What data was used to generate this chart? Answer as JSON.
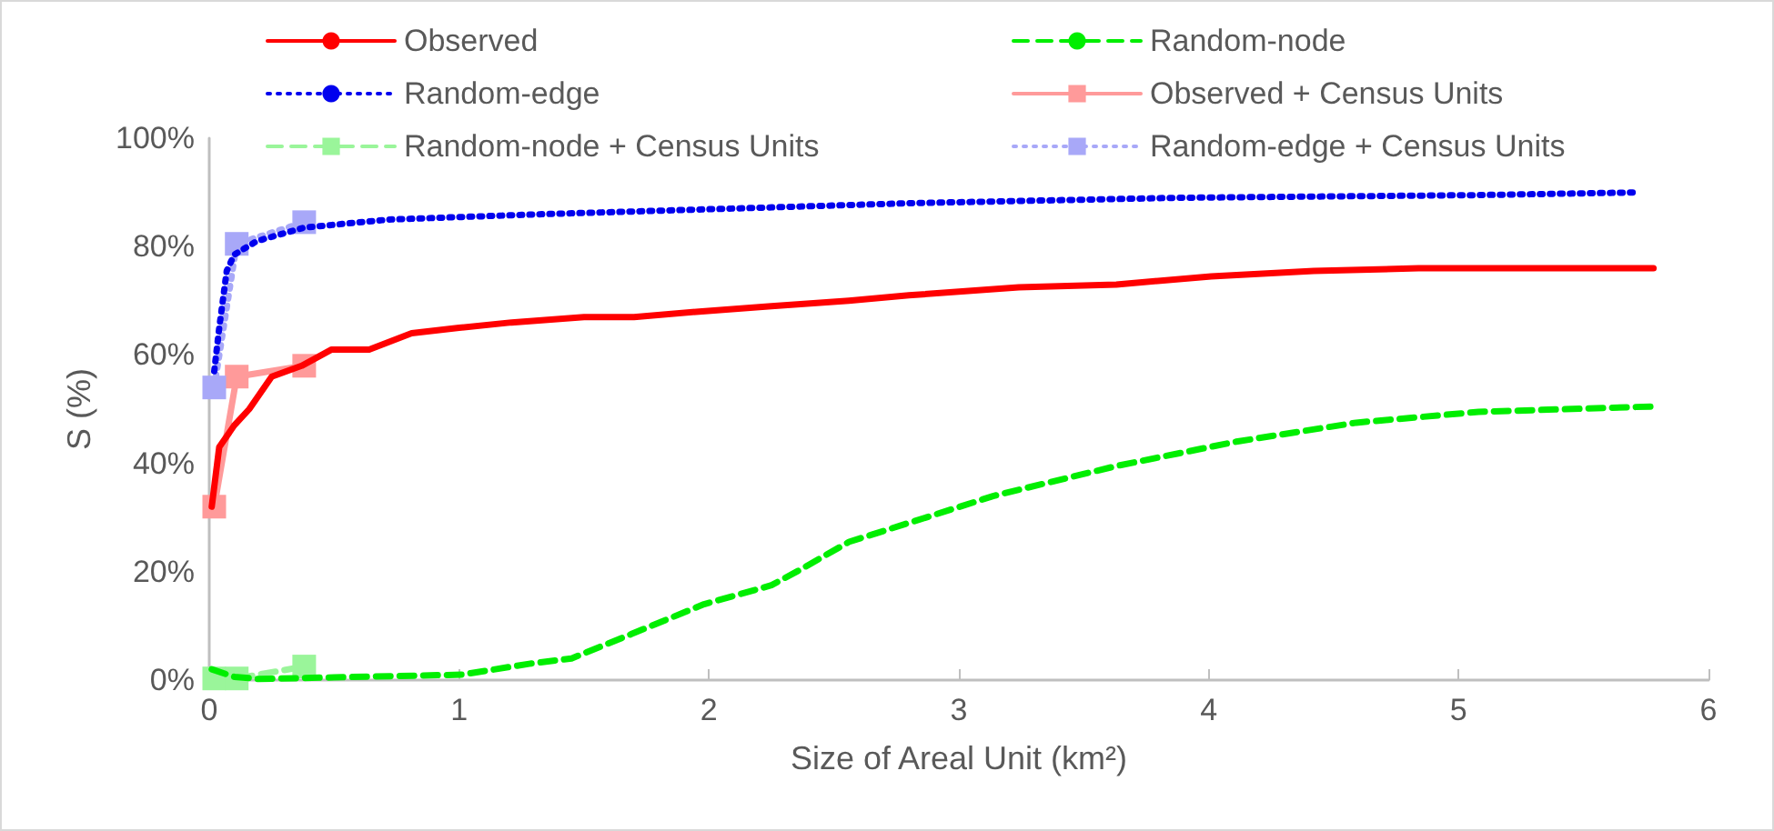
{
  "chart_data": {
    "type": "line",
    "xlabel": "Size of Areal Unit (km²)",
    "ylabel": "S (%)",
    "xlim": [
      0,
      6
    ],
    "xticks": [
      0,
      1,
      2,
      3,
      4,
      5,
      6
    ],
    "ylim": [
      0,
      100
    ],
    "yticks": [
      {
        "value": 0,
        "label": "0%"
      },
      {
        "value": 20,
        "label": "20%"
      },
      {
        "value": 40,
        "label": "40%"
      },
      {
        "value": 60,
        "label": "60%"
      },
      {
        "value": 80,
        "label": "80%"
      },
      {
        "value": 100,
        "label": "100%"
      }
    ],
    "grid": false,
    "legend": "top",
    "series": [
      {
        "name": "Observed",
        "color": "#ff0000",
        "line_style": "solid",
        "marker": "none",
        "x": [
          0.01,
          0.04,
          0.1,
          0.16,
          0.25,
          0.37,
          0.49,
          0.64,
          0.81,
          1.0,
          1.21,
          1.5,
          1.7,
          1.96,
          2.25,
          2.56,
          2.8,
          3.24,
          3.63,
          4.01,
          4.42,
          4.84,
          5.78
        ],
        "values": [
          32,
          43,
          47,
          50,
          56,
          58,
          61,
          61,
          64,
          65,
          66,
          67,
          67,
          68,
          69,
          70,
          71,
          72.5,
          73,
          74.5,
          75.5,
          76,
          76
        ]
      },
      {
        "name": "Random-node",
        "color": "#00ee00",
        "line_style": "dashed",
        "marker": "none",
        "x": [
          0.01,
          0.1,
          0.2,
          0.5,
          1.01,
          1.28,
          1.45,
          1.69,
          1.98,
          2.25,
          2.37,
          2.56,
          2.8,
          3.14,
          3.63,
          4.11,
          4.59,
          5.08,
          5.78
        ],
        "values": [
          2,
          0.6,
          0.2,
          0.5,
          1,
          3,
          4,
          8.5,
          14,
          17.5,
          20.5,
          25.5,
          29,
          34,
          39.5,
          44,
          47.5,
          49.5,
          50.5
        ]
      },
      {
        "name": "Random-edge",
        "color": "#0000ee",
        "line_style": "dotted",
        "marker": "none",
        "x": [
          0.02,
          0.04,
          0.07,
          0.1,
          0.19,
          0.38,
          0.72,
          1.35,
          2.08,
          2.8,
          3.87,
          5.08,
          5.72
        ],
        "values": [
          57,
          65,
          75.5,
          78.5,
          81,
          83.5,
          85,
          86,
          87,
          88,
          89,
          89.5,
          90
        ]
      },
      {
        "name": "Observed + Census Units",
        "color": "#ff9a9a",
        "line_style": "solid",
        "marker": "square",
        "x": [
          0.02,
          0.11,
          0.38
        ],
        "values": [
          32,
          56,
          58
        ]
      },
      {
        "name": "Random-node + Census Units",
        "color": "#9af59a",
        "line_style": "dashed",
        "marker": "square",
        "x": [
          0.02,
          0.11,
          0.38
        ],
        "values": [
          0.3,
          0.3,
          2.5
        ]
      },
      {
        "name": "Random-edge + Census Units",
        "color": "#a8a8f8",
        "line_style": "dotted",
        "marker": "square",
        "x": [
          0.02,
          0.11,
          0.38
        ],
        "values": [
          54,
          80.5,
          84.5
        ]
      }
    ]
  }
}
